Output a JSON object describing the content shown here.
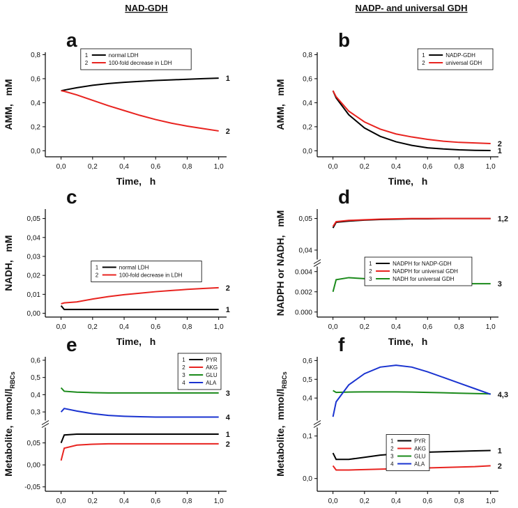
{
  "headings": [
    "NAD-GDH",
    "NADP- and universal GDH"
  ],
  "chart_data": [
    {
      "type": "line",
      "panel": "a",
      "xlabel": "Time,   h",
      "ylabel": "AMM,   mM",
      "x": [
        0,
        0.02,
        0.1,
        0.2,
        0.3,
        0.4,
        0.5,
        0.6,
        0.7,
        0.8,
        0.9,
        1.0
      ],
      "xlim": [
        -0.1,
        1.05
      ],
      "xticks": [
        {
          "value": 0,
          "label": "0,0"
        },
        {
          "value": 0.2,
          "label": "0,2"
        },
        {
          "value": 0.4,
          "label": "0,4"
        },
        {
          "value": 0.6,
          "label": "0,6"
        },
        {
          "value": 0.8,
          "label": "0,8"
        },
        {
          "value": 1.0,
          "label": "1,0"
        }
      ],
      "ylim": [
        -0.05,
        0.82
      ],
      "yticks": [
        {
          "value": 0,
          "label": "0,0"
        },
        {
          "value": 0.2,
          "label": "0,2"
        },
        {
          "value": 0.4,
          "label": "0,4"
        },
        {
          "value": 0.6,
          "label": "0,6"
        },
        {
          "value": 0.8,
          "label": "0,8"
        }
      ],
      "legend": "upper center",
      "series": [
        {
          "key": "1",
          "name": "normal LDH",
          "color": "#000000",
          "end_label": "1",
          "values": [
            0.5,
            0.505,
            0.525,
            0.545,
            0.56,
            0.57,
            0.578,
            0.585,
            0.59,
            0.595,
            0.6,
            0.605
          ]
        },
        {
          "key": "2",
          "name": "100-fold decrease in LDH",
          "color": "#e8231f",
          "end_label": "2",
          "values": [
            0.5,
            0.495,
            0.465,
            0.42,
            0.375,
            0.335,
            0.295,
            0.26,
            0.23,
            0.205,
            0.185,
            0.165
          ]
        }
      ]
    },
    {
      "type": "line",
      "panel": "b",
      "xlabel": "Time,   h",
      "ylabel": "AMM,   mM",
      "x": [
        0,
        0.02,
        0.1,
        0.2,
        0.3,
        0.4,
        0.5,
        0.6,
        0.7,
        0.8,
        0.9,
        1.0
      ],
      "xlim": [
        -0.1,
        1.05
      ],
      "xticks": [
        {
          "value": 0,
          "label": "0,0"
        },
        {
          "value": 0.2,
          "label": "0,2"
        },
        {
          "value": 0.4,
          "label": "0,4"
        },
        {
          "value": 0.6,
          "label": "0,6"
        },
        {
          "value": 0.8,
          "label": "0,8"
        },
        {
          "value": 1.0,
          "label": "1,0"
        }
      ],
      "ylim": [
        -0.05,
        0.82
      ],
      "yticks": [
        {
          "value": 0,
          "label": "0,0"
        },
        {
          "value": 0.2,
          "label": "0,2"
        },
        {
          "value": 0.4,
          "label": "0,4"
        },
        {
          "value": 0.6,
          "label": "0,6"
        },
        {
          "value": 0.8,
          "label": "0,8"
        }
      ],
      "legend": "upper right",
      "series": [
        {
          "key": "1",
          "name": "NADP-GDH",
          "color": "#000000",
          "end_label": "1",
          "values": [
            0.5,
            0.44,
            0.3,
            0.19,
            0.12,
            0.075,
            0.045,
            0.025,
            0.015,
            0.008,
            0.004,
            0.002
          ]
        },
        {
          "key": "2",
          "name": "universal GDH",
          "color": "#e8231f",
          "end_label": "2",
          "values": [
            0.5,
            0.45,
            0.33,
            0.24,
            0.18,
            0.14,
            0.115,
            0.095,
            0.08,
            0.07,
            0.065,
            0.06
          ]
        }
      ]
    },
    {
      "type": "line",
      "panel": "c",
      "xlabel": "Time,   h",
      "ylabel": "NADH,   mM",
      "x": [
        0,
        0.02,
        0.1,
        0.2,
        0.3,
        0.4,
        0.5,
        0.6,
        0.7,
        0.8,
        0.9,
        1.0
      ],
      "xlim": [
        -0.1,
        1.05
      ],
      "xticks": [
        {
          "value": 0,
          "label": "0,0"
        },
        {
          "value": 0.2,
          "label": "0,2"
        },
        {
          "value": 0.4,
          "label": "0,4"
        },
        {
          "value": 0.6,
          "label": "0,6"
        },
        {
          "value": 0.8,
          "label": "0,8"
        },
        {
          "value": 1.0,
          "label": "1,0"
        }
      ],
      "ylim": [
        -0.002,
        0.055
      ],
      "yticks": [
        {
          "value": 0,
          "label": "0,00"
        },
        {
          "value": 0.01,
          "label": "0,01"
        },
        {
          "value": 0.02,
          "label": "0,02"
        },
        {
          "value": 0.03,
          "label": "0,03"
        },
        {
          "value": 0.04,
          "label": "0,04"
        },
        {
          "value": 0.05,
          "label": "0,05"
        }
      ],
      "legend": "center",
      "series": [
        {
          "key": "1",
          "name": "normal LDH",
          "color": "#000000",
          "end_label": "1",
          "values": [
            0.004,
            0.002,
            0.002,
            0.002,
            0.002,
            0.002,
            0.002,
            0.002,
            0.002,
            0.002,
            0.002,
            0.002
          ]
        },
        {
          "key": "2",
          "name": "100-fold decrease in LDH",
          "color": "#e8231f",
          "end_label": "2",
          "values": [
            0.005,
            0.0055,
            0.006,
            0.0075,
            0.0088,
            0.0098,
            0.0106,
            0.0114,
            0.012,
            0.0126,
            0.0131,
            0.0135
          ]
        }
      ]
    },
    {
      "type": "line",
      "panel": "d",
      "xlabel": "Time,   h",
      "ylabel": "NADPH or NADH,   mM",
      "x": [
        0,
        0.02,
        0.1,
        0.2,
        0.3,
        0.4,
        0.5,
        0.6,
        0.7,
        0.8,
        0.9,
        1.0
      ],
      "xlim": [
        -0.1,
        1.05
      ],
      "xticks": [
        {
          "value": 0,
          "label": "0,0"
        },
        {
          "value": 0.2,
          "label": "0,2"
        },
        {
          "value": 0.4,
          "label": "0,4"
        },
        {
          "value": 0.6,
          "label": "0,6"
        },
        {
          "value": 0.8,
          "label": "0,8"
        },
        {
          "value": 1.0,
          "label": "1,0"
        }
      ],
      "y_segments": [
        {
          "ylim": [
            -0.0005,
            0.0045
          ],
          "yticks": [
            {
              "value": 0,
              "label": "0.000"
            },
            {
              "value": 0.002,
              "label": "0.002"
            },
            {
              "value": 0.004,
              "label": "0.004"
            }
          ]
        },
        {
          "ylim": [
            0.037,
            0.053
          ],
          "yticks": [
            {
              "value": 0.04,
              "label": "0,04"
            },
            {
              "value": 0.05,
              "label": "0,05"
            }
          ]
        }
      ],
      "legend": "center",
      "series": [
        {
          "key": "1",
          "name": "NADPH for NADP-GDH",
          "color": "#000000",
          "end_label": "1,2",
          "values": [
            0.047,
            0.0488,
            0.0492,
            0.0495,
            0.0497,
            0.0498,
            0.0499,
            0.0499,
            0.05,
            0.05,
            0.05,
            0.05
          ]
        },
        {
          "key": "2",
          "name": "NADPH for universal GDH",
          "color": "#e8231f",
          "values": [
            0.0475,
            0.049,
            0.0494,
            0.0496,
            0.0498,
            0.0499,
            0.05,
            0.05,
            0.05,
            0.05,
            0.05,
            0.05
          ]
        },
        {
          "key": "3",
          "name": "NADH for universal GDH",
          "color": "#1a8a1a",
          "end_label": "3",
          "values": [
            0.002,
            0.0032,
            0.0034,
            0.0033,
            0.0031,
            0.003,
            0.0029,
            0.0029,
            0.0028,
            0.0028,
            0.0028,
            0.0028
          ]
        }
      ]
    },
    {
      "type": "line",
      "panel": "e",
      "xlabel": "Time,   h",
      "ylabel": "Metabolite,  mmol/l",
      "ylabel_sub": "RBCs",
      "x": [
        0,
        0.02,
        0.1,
        0.2,
        0.3,
        0.4,
        0.5,
        0.6,
        0.7,
        0.8,
        0.9,
        1.0
      ],
      "xlim": [
        -0.1,
        1.05
      ],
      "xticks": [
        {
          "value": 0,
          "label": "0,0"
        },
        {
          "value": 0.2,
          "label": "0,2"
        },
        {
          "value": 0.4,
          "label": "0,4"
        },
        {
          "value": 0.6,
          "label": "0,6"
        },
        {
          "value": 0.8,
          "label": "0,8"
        },
        {
          "value": 1.0,
          "label": "1,0"
        }
      ],
      "y_segments": [
        {
          "ylim": [
            -0.06,
            0.085
          ],
          "yticks": [
            {
              "value": -0.05,
              "label": "-0,05"
            },
            {
              "value": 0,
              "label": "0,00"
            },
            {
              "value": 0.05,
              "label": "0,05"
            }
          ]
        },
        {
          "ylim": [
            0.25,
            0.62
          ],
          "yticks": [
            {
              "value": 0.3,
              "label": "0,3"
            },
            {
              "value": 0.4,
              "label": "0,4"
            },
            {
              "value": 0.5,
              "label": "0,5"
            },
            {
              "value": 0.6,
              "label": "0,6"
            }
          ]
        }
      ],
      "legend": "upper right",
      "series": [
        {
          "key": "1",
          "name": "PYR",
          "color": "#000000",
          "end_label": "1",
          "values": [
            0.05,
            0.068,
            0.07,
            0.07,
            0.07,
            0.07,
            0.07,
            0.07,
            0.07,
            0.07,
            0.07,
            0.07
          ]
        },
        {
          "key": "2",
          "name": "AKG",
          "color": "#e8231f",
          "end_label": "2",
          "values": [
            0.01,
            0.038,
            0.045,
            0.047,
            0.048,
            0.048,
            0.048,
            0.048,
            0.048,
            0.048,
            0.048,
            0.048
          ]
        },
        {
          "key": "3",
          "name": "GLU",
          "color": "#1a8a1a",
          "end_label": "3",
          "values": [
            0.44,
            0.42,
            0.415,
            0.412,
            0.41,
            0.41,
            0.41,
            0.41,
            0.41,
            0.41,
            0.41,
            0.41
          ]
        },
        {
          "key": "4",
          "name": "ALA",
          "color": "#1a33d0",
          "end_label": "4",
          "values": [
            0.3,
            0.32,
            0.305,
            0.29,
            0.28,
            0.275,
            0.272,
            0.27,
            0.27,
            0.27,
            0.27,
            0.27
          ]
        }
      ]
    },
    {
      "type": "line",
      "panel": "f",
      "xlabel": "Time,   h",
      "ylabel": "Metabolite,  mmol/l",
      "ylabel_sub": "RBCs",
      "x": [
        0,
        0.02,
        0.1,
        0.2,
        0.3,
        0.4,
        0.5,
        0.6,
        0.7,
        0.8,
        0.9,
        1.0
      ],
      "xlim": [
        -0.1,
        1.05
      ],
      "xticks": [
        {
          "value": 0,
          "label": "0,0"
        },
        {
          "value": 0.2,
          "label": "0,2"
        },
        {
          "value": 0.4,
          "label": "0,4"
        },
        {
          "value": 0.6,
          "label": "0,6"
        },
        {
          "value": 0.8,
          "label": "0,8"
        },
        {
          "value": 1.0,
          "label": "1,0"
        }
      ],
      "y_segments": [
        {
          "ylim": [
            -0.03,
            0.12
          ],
          "yticks": [
            {
              "value": 0,
              "label": "0,0"
            },
            {
              "value": 0.1,
              "label": "0,1"
            }
          ]
        },
        {
          "ylim": [
            0.28,
            0.62
          ],
          "yticks": [
            {
              "value": 0.4,
              "label": "0,4"
            },
            {
              "value": 0.5,
              "label": "0,5"
            },
            {
              "value": 0.6,
              "label": "0,6"
            }
          ]
        }
      ],
      "legend": "lower center",
      "series": [
        {
          "key": "1",
          "name": "PYR",
          "color": "#000000",
          "end_label": "1",
          "values": [
            0.06,
            0.045,
            0.045,
            0.05,
            0.055,
            0.058,
            0.06,
            0.062,
            0.063,
            0.064,
            0.065,
            0.066
          ]
        },
        {
          "key": "2",
          "name": "AKG",
          "color": "#e8231f",
          "end_label": "2",
          "values": [
            0.03,
            0.02,
            0.02,
            0.021,
            0.022,
            0.023,
            0.024,
            0.025,
            0.026,
            0.027,
            0.028,
            0.03
          ]
        },
        {
          "key": "3",
          "name": "GLU",
          "color": "#1a8a1a",
          "values": [
            0.44,
            0.43,
            0.432,
            0.433,
            0.433,
            0.433,
            0.432,
            0.43,
            0.428,
            0.426,
            0.424,
            0.422
          ]
        },
        {
          "key": "4",
          "name": "ALA",
          "color": "#1a33d0",
          "end_label": "4,3",
          "values": [
            0.3,
            0.38,
            0.47,
            0.53,
            0.565,
            0.575,
            0.565,
            0.54,
            0.51,
            0.48,
            0.45,
            0.42
          ]
        }
      ]
    }
  ]
}
